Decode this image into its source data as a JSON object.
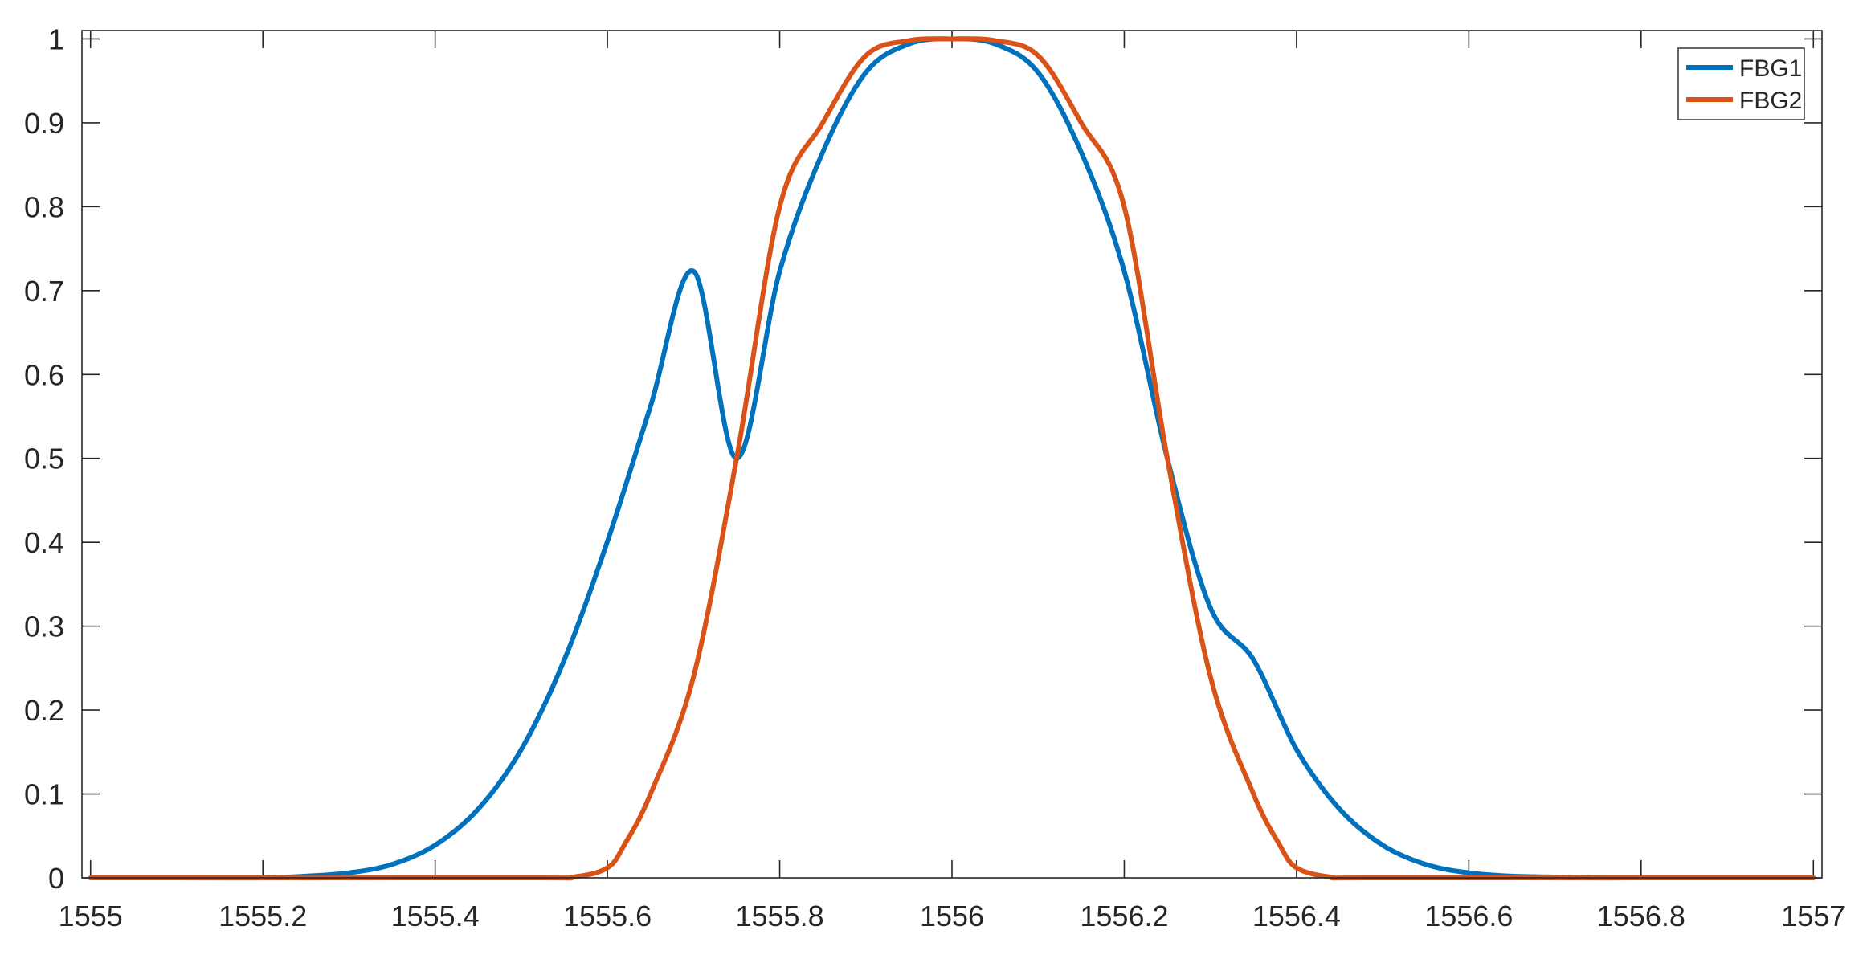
{
  "chart_data": {
    "type": "line",
    "title": "",
    "xlabel": "",
    "ylabel": "",
    "xlim": [
      1554.99,
      1557.01
    ],
    "ylim": [
      0,
      1.01
    ],
    "xticks": [
      1555,
      1555.2,
      1555.4,
      1555.6,
      1555.8,
      1556,
      1556.2,
      1556.4,
      1556.6,
      1556.8,
      1557
    ],
    "xtick_labels": [
      "1555",
      "1555.2",
      "1555.4",
      "1555.6",
      "1555.8",
      "1556",
      "1556.2",
      "1556.4",
      "1556.6",
      "1556.8",
      "1557"
    ],
    "yticks": [
      0,
      0.1,
      0.2,
      0.3,
      0.4,
      0.5,
      0.6,
      0.7,
      0.8,
      0.9,
      1
    ],
    "ytick_labels": [
      "0",
      "0.1",
      "0.2",
      "0.3",
      "0.4",
      "0.5",
      "0.6",
      "0.7",
      "0.8",
      "0.9",
      "1"
    ],
    "grid": false,
    "legend_position": "top-right",
    "series": [
      {
        "name": "FBG1",
        "color": "#0072BD",
        "x": [
          1555.0,
          1555.1,
          1555.2,
          1555.25,
          1555.3,
          1555.35,
          1555.4,
          1555.45,
          1555.5,
          1555.55,
          1555.6,
          1555.65,
          1555.7,
          1555.75,
          1555.8,
          1555.85,
          1555.9,
          1555.95,
          1556.0,
          1556.05,
          1556.1,
          1556.15,
          1556.2,
          1556.25,
          1556.3,
          1556.35,
          1556.4,
          1556.45,
          1556.5,
          1556.55,
          1556.6,
          1556.65,
          1556.7,
          1556.75,
          1556.8,
          1556.9,
          1557.0
        ],
        "y": [
          0.0,
          0.0,
          0.0,
          0.002,
          0.006,
          0.016,
          0.039,
          0.082,
          0.153,
          0.26,
          0.401,
          0.562,
          0.723,
          0.5,
          0.723,
          0.865,
          0.96,
          0.994,
          1.0,
          0.994,
          0.96,
          0.865,
          0.723,
          0.5,
          0.322,
          0.26,
          0.153,
          0.082,
          0.039,
          0.016,
          0.006,
          0.002,
          0.001,
          0.0,
          0.0,
          0.0,
          0.0
        ]
      },
      {
        "name": "FBG2",
        "color": "#D95319",
        "x": [
          1555.0,
          1555.5,
          1555.56,
          1555.6,
          1555.62,
          1555.65,
          1555.7,
          1555.75,
          1555.8,
          1555.85,
          1555.9,
          1555.95,
          1556.0,
          1556.05,
          1556.1,
          1556.15,
          1556.2,
          1556.25,
          1556.3,
          1556.35,
          1556.38,
          1556.4,
          1556.44,
          1556.5,
          1557.0
        ],
        "y": [
          0.0,
          0.0,
          0.001,
          0.012,
          0.04,
          0.1,
          0.24,
          0.5,
          0.8,
          0.9,
          0.98,
          0.998,
          1.0,
          0.998,
          0.98,
          0.9,
          0.8,
          0.5,
          0.24,
          0.1,
          0.04,
          0.012,
          0.001,
          0.0,
          0.0
        ]
      }
    ]
  }
}
